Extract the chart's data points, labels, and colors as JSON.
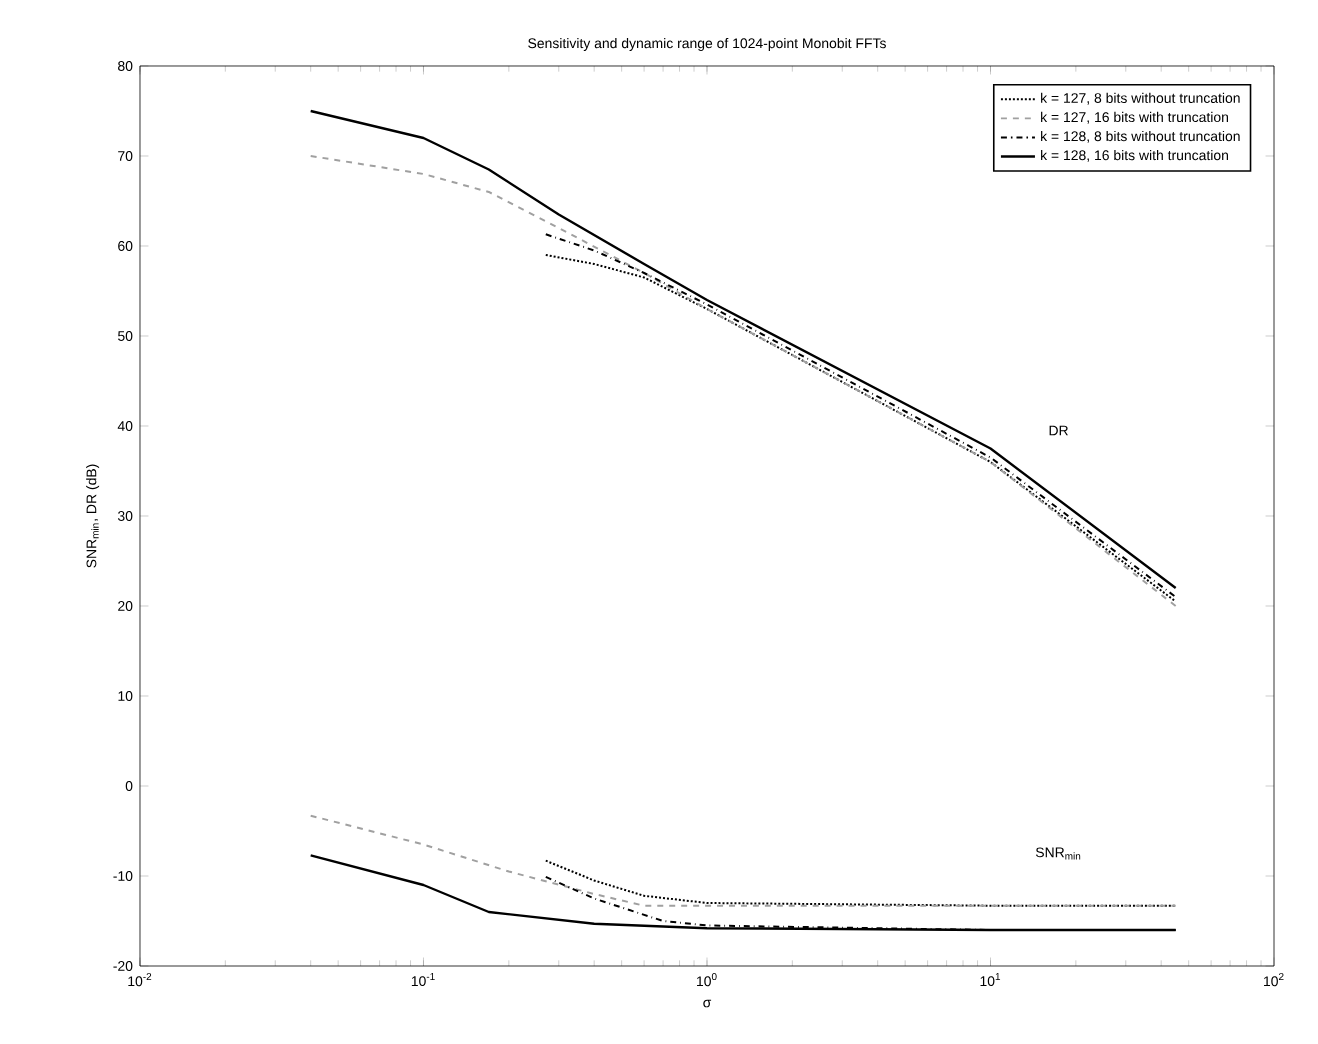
{
  "chart_data": {
    "type": "line",
    "title": "Sensitivity and dynamic range of 1024-point Monobit FFTs",
    "xlabel": "σ",
    "ylabel": "SNR$_{min}$, DR (dB)",
    "log": "x",
    "grid": false,
    "legend": "top right",
    "xlim": [
      0.01,
      100
    ],
    "ylim": [
      -20,
      80
    ],
    "xticks": [
      {
        "value": 0.01,
        "label": "10$^{-2}$"
      },
      {
        "value": 0.1,
        "label": "10$^{-1}$"
      },
      {
        "value": 1,
        "label": "10$^{0}$"
      },
      {
        "value": 10,
        "label": "10$^{1}$"
      },
      {
        "value": 100,
        "label": "10$^{2}$"
      }
    ],
    "yticks": [
      -20,
      -10,
      0,
      10,
      20,
      30,
      40,
      50,
      60,
      70,
      80
    ],
    "annotations": [
      "DR",
      "SNR$_{min}$"
    ],
    "series": [
      {
        "name": "k = 127,   8 bits  without truncation",
        "color": "#000000",
        "line_style": "dotted",
        "x": [
          0.27,
          0.4,
          0.6,
          1,
          10,
          45
        ],
        "values": [
          59,
          58,
          56.5,
          53,
          36,
          20.5
        ]
      },
      {
        "name": "k = 127, 16 bits  with truncation",
        "color": "#a0a0a0",
        "line_style": "dashed",
        "x": [
          0.04,
          0.1,
          0.17,
          0.3,
          0.6,
          1,
          10,
          45
        ],
        "values": [
          70,
          68,
          66,
          62,
          57,
          53,
          36,
          20
        ]
      },
      {
        "name": "k = 128,   8 bits  without truncation",
        "color": "#000000",
        "line_style": "dashdot",
        "x": [
          0.27,
          0.4,
          0.6,
          1,
          10,
          45
        ],
        "values": [
          61.3,
          59.5,
          57,
          53.5,
          36.5,
          21
        ]
      },
      {
        "name": "k = 128, 16 bits  with truncation",
        "color": "#000000",
        "line_style": "solid",
        "x": [
          0.04,
          0.1,
          0.17,
          0.3,
          0.6,
          1,
          10,
          45
        ],
        "values": [
          75,
          72,
          68.5,
          63.5,
          58,
          54,
          37.5,
          22
        ]
      },
      {
        "color": "#000000",
        "line_style": "dotted",
        "x": [
          0.27,
          0.4,
          0.6,
          1,
          10,
          45
        ],
        "values": [
          -8.3,
          -10.5,
          -12.2,
          -13,
          -13.3,
          -13.3
        ]
      },
      {
        "color": "#a0a0a0",
        "line_style": "dashed",
        "x": [
          0.04,
          0.1,
          0.2,
          0.4,
          0.6,
          1,
          10,
          45
        ],
        "values": [
          -3.3,
          -6.5,
          -9.5,
          -12,
          -13.3,
          -13.3,
          -13.3,
          -13.3
        ]
      },
      {
        "color": "#000000",
        "line_style": "dashdot",
        "x": [
          0.27,
          0.4,
          0.7,
          1,
          10,
          45
        ],
        "values": [
          -10.1,
          -12.5,
          -15,
          -15.5,
          -16,
          -16
        ]
      },
      {
        "color": "#000000",
        "line_style": "solid",
        "x": [
          0.04,
          0.1,
          0.17,
          0.4,
          1,
          10,
          45
        ],
        "values": [
          -7.7,
          -11,
          -14,
          -15.3,
          -15.8,
          -16,
          -16
        ]
      }
    ]
  }
}
